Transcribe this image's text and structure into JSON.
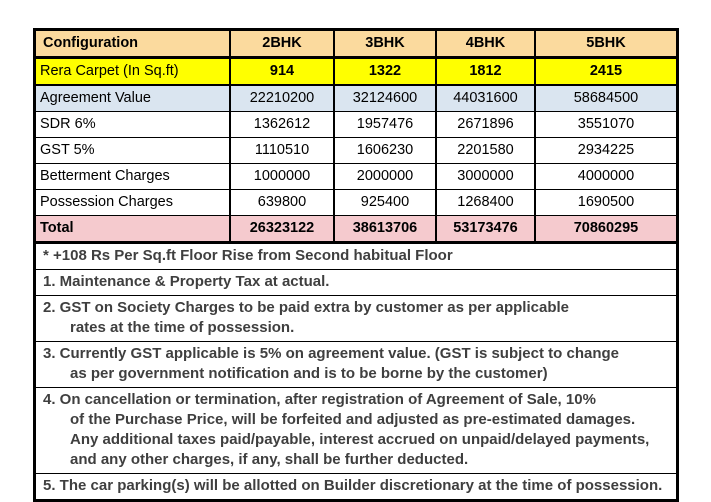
{
  "document_title": "Apartment pricing configuration sheet",
  "colors": {
    "header_bg": "#FBDA9E",
    "rera_row_bg": "#FFFF00",
    "agreement_row_bg": "#DAE5F0",
    "total_row_bg": "#F5CACE",
    "border": "#000000",
    "note_text": "#3F3F3F",
    "table_text": "#000000"
  },
  "table": {
    "header": {
      "label": "Configuration",
      "columns": [
        "2BHK",
        "3BHK",
        "4BHK",
        "5BHK"
      ]
    },
    "rows": [
      {
        "label": "Rera Carpet (In Sq.ft)",
        "values": [
          "914",
          "1322",
          "1812",
          "2415"
        ],
        "bg": "yellow",
        "bold_label": false,
        "bold_values": true
      },
      {
        "label": "Agreement Value",
        "values": [
          "22210200",
          "32124600",
          "44031600",
          "58684500"
        ],
        "bg": "blue",
        "bold_label": false,
        "bold_values": false
      },
      {
        "label": "SDR 6%",
        "values": [
          "1362612",
          "1957476",
          "2671896",
          "3551070"
        ],
        "bg": "white",
        "bold_label": false,
        "bold_values": false
      },
      {
        "label": "GST 5%",
        "values": [
          "1110510",
          "1606230",
          "2201580",
          "2934225"
        ],
        "bg": "white",
        "bold_label": false,
        "bold_values": false
      },
      {
        "label": "Betterment Charges",
        "values": [
          "1000000",
          "2000000",
          "3000000",
          "4000000"
        ],
        "bg": "white",
        "bold_label": false,
        "bold_values": false
      },
      {
        "label": "Possession Charges",
        "values": [
          "639800",
          "925400",
          "1268400",
          "1690500"
        ],
        "bg": "white",
        "bold_label": false,
        "bold_values": false
      },
      {
        "label": "Total",
        "values": [
          "26323122",
          "38613706",
          "53173476",
          "70860295"
        ],
        "bg": "pink",
        "bold_label": true,
        "bold_values": true
      }
    ]
  },
  "notes": [
    {
      "lines": [
        "* +108 Rs Per Sq.ft Floor Rise from Second habitual Floor"
      ]
    },
    {
      "lines": [
        "1. Maintenance & Property Tax at actual."
      ]
    },
    {
      "lines": [
        "2. GST on Society Charges to be paid extra by customer as per applicable",
        "rates at the time of possession."
      ]
    },
    {
      "lines": [
        "3. Currently GST applicable is 5% on agreement value. (GST is subject to change",
        "as per government notification and is to be borne by the customer)"
      ]
    },
    {
      "lines": [
        "4. On cancellation or termination, after registration of Agreement of Sale, 10%",
        "of the Purchase Price, will be forfeited and adjusted as pre-estimated damages.",
        "Any additional taxes paid/payable, interest accrued on unpaid/delayed payments,",
        "and any other charges, if any, shall be further deducted."
      ]
    },
    {
      "lines": [
        "5. The car parking(s) will be allotted on Builder discretionary at the time of possession."
      ]
    }
  ]
}
